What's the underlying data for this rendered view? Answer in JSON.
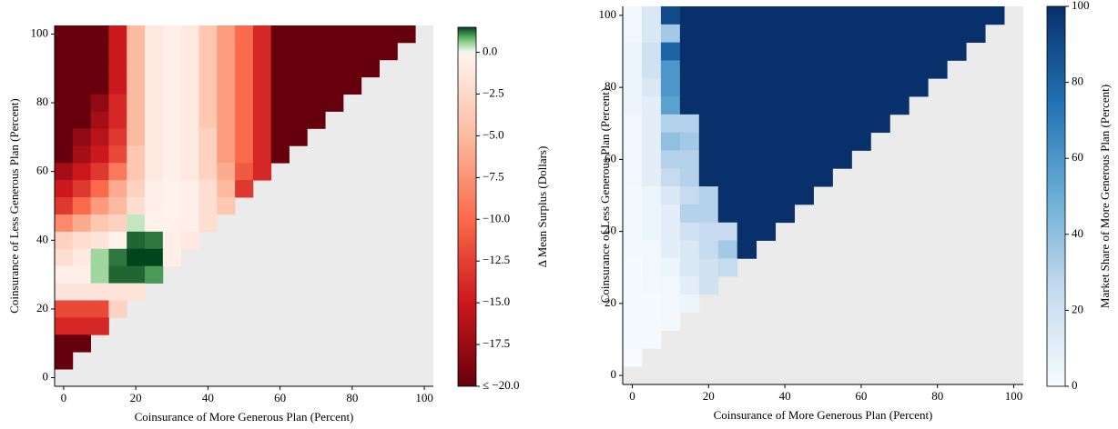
{
  "chart_data": [
    {
      "type": "heatmap",
      "colormap": "RdGn",
      "xlabel": "Coinsurance of More Generous Plan (Percent)",
      "ylabel": "Coinsurance of Less Generous Plan (Percent)",
      "x": [
        0,
        5,
        10,
        15,
        20,
        25,
        30,
        35,
        40,
        45,
        50,
        55,
        60,
        65,
        70,
        75,
        80,
        85,
        90,
        95
      ],
      "y": [
        100,
        95,
        90,
        85,
        80,
        75,
        70,
        65,
        60,
        55,
        50,
        45,
        40,
        35,
        30,
        25,
        20,
        15,
        10,
        5
      ],
      "z": [
        [
          -20,
          -20,
          -20,
          -15,
          -5,
          -1,
          -0.5,
          -1,
          -4,
          -7,
          -10,
          -14,
          -20,
          -20,
          -20,
          -20,
          -20,
          -20,
          -20,
          -20
        ],
        [
          -20,
          -20,
          -20,
          -15,
          -5,
          -1,
          -0.5,
          -1,
          -4,
          -7,
          -10,
          -14,
          -20,
          -20,
          -20,
          -20,
          -20,
          -20,
          -20,
          null
        ],
        [
          -20,
          -20,
          -20,
          -15,
          -5,
          -1,
          -0.5,
          -1,
          -4,
          -7,
          -10,
          -14,
          -20,
          -20,
          -20,
          -20,
          -20,
          -20,
          null,
          null
        ],
        [
          -20,
          -20,
          -20,
          -15,
          -5,
          -1,
          -0.5,
          -1,
          -4,
          -7,
          -10,
          -14,
          -20,
          -20,
          -20,
          -20,
          -20,
          null,
          null,
          null
        ],
        [
          -20,
          -20,
          -18,
          -14,
          -5,
          -1,
          -0.5,
          -1,
          -4,
          -7,
          -10,
          -14,
          -20,
          -20,
          -20,
          -20,
          null,
          null,
          null,
          null
        ],
        [
          -20,
          -20,
          -17,
          -14,
          -5,
          -1,
          -0.5,
          -1,
          -4,
          -7,
          -10,
          -14,
          -20,
          -20,
          -20,
          null,
          null,
          null,
          null,
          null
        ],
        [
          -20,
          -18,
          -16,
          -13,
          -5,
          -1,
          -0.5,
          -1,
          -3,
          -7,
          -10,
          -14,
          -20,
          -20,
          null,
          null,
          null,
          null,
          null,
          null
        ],
        [
          -20,
          -17,
          -15,
          -12,
          -4,
          -1,
          -0.5,
          -1,
          -3,
          -7,
          -10,
          -14,
          -20,
          null,
          null,
          null,
          null,
          null,
          null,
          null
        ],
        [
          -17,
          -15,
          -13,
          -9,
          -4,
          -1,
          -0.5,
          -1,
          -3,
          -6,
          -11,
          -14,
          null,
          null,
          null,
          null,
          null,
          null,
          null,
          null
        ],
        [
          -15,
          -13,
          -10,
          -6,
          -3,
          -0.5,
          -0.3,
          -0.5,
          -2,
          -5,
          -13,
          null,
          null,
          null,
          null,
          null,
          null,
          null,
          null,
          null
        ],
        [
          -13,
          -10,
          -7,
          -5,
          -2,
          -0.5,
          -0.3,
          -0.5,
          -2,
          -4,
          null,
          null,
          null,
          null,
          null,
          null,
          null,
          null,
          null,
          null
        ],
        [
          -8,
          -6,
          -4,
          -3,
          0.3,
          -0.3,
          -0.3,
          -0.5,
          -2,
          null,
          null,
          null,
          null,
          null,
          null,
          null,
          null,
          null,
          null,
          null
        ],
        [
          -3,
          -2,
          -1.5,
          -0.3,
          1.3,
          1.2,
          -0.5,
          -1,
          null,
          null,
          null,
          null,
          null,
          null,
          null,
          null,
          null,
          null,
          null,
          null
        ],
        [
          -2,
          -1,
          0.5,
          1.2,
          2,
          1.6,
          -0.5,
          null,
          null,
          null,
          null,
          null,
          null,
          null,
          null,
          null,
          null,
          null,
          null,
          null
        ],
        [
          -0.5,
          -0.5,
          0.5,
          1.3,
          1.3,
          1,
          null,
          null,
          null,
          null,
          null,
          null,
          null,
          null,
          null,
          null,
          null,
          null,
          null,
          null
        ],
        [
          -1.5,
          -1.5,
          -1.5,
          -1.5,
          -1.5,
          null,
          null,
          null,
          null,
          null,
          null,
          null,
          null,
          null,
          null,
          null,
          null,
          null,
          null,
          null
        ],
        [
          -12,
          -12,
          -12,
          -3,
          null,
          null,
          null,
          null,
          null,
          null,
          null,
          null,
          null,
          null,
          null,
          null,
          null,
          null,
          null,
          null
        ],
        [
          -14,
          -14,
          -14,
          null,
          null,
          null,
          null,
          null,
          null,
          null,
          null,
          null,
          null,
          null,
          null,
          null,
          null,
          null,
          null,
          null
        ],
        [
          -20,
          -20,
          null,
          null,
          null,
          null,
          null,
          null,
          null,
          null,
          null,
          null,
          null,
          null,
          null,
          null,
          null,
          null,
          null,
          null
        ],
        [
          -20,
          null,
          null,
          null,
          null,
          null,
          null,
          null,
          null,
          null,
          null,
          null,
          null,
          null,
          null,
          null,
          null,
          null,
          null,
          null
        ]
      ],
      "xlim": [
        -2.5,
        102.5
      ],
      "ylim": [
        -2.5,
        102.5
      ],
      "xticks": [
        0,
        20,
        40,
        60,
        80,
        100
      ],
      "yticks": [
        0,
        20,
        40,
        60,
        80,
        100
      ],
      "colorbar": {
        "label": "Δ Mean Surplus (Dollars)",
        "lim": [
          -20,
          1.5
        ],
        "ticks": [
          {
            "value": 0,
            "label": "0.0"
          },
          {
            "value": -2.5,
            "label": "−2.5"
          },
          {
            "value": -5,
            "label": "−5.0"
          },
          {
            "value": -7.5,
            "label": "−7.5"
          },
          {
            "value": -10,
            "label": "−10.0"
          },
          {
            "value": -12.5,
            "label": "−12.5"
          },
          {
            "value": -15,
            "label": "−15.0"
          },
          {
            "value": -17.5,
            "label": "−17.5"
          },
          {
            "value": -20,
            "label": "≤ −20.0"
          }
        ]
      }
    },
    {
      "type": "heatmap",
      "colormap": "Blues",
      "xlabel": "Coinsurance of More Generous Plan (Percent)",
      "ylabel": "Coinsurance of Less Generous Plan (Percent)",
      "x": [
        0,
        5,
        10,
        15,
        20,
        25,
        30,
        35,
        40,
        45,
        50,
        55,
        60,
        65,
        70,
        75,
        80,
        85,
        90,
        95
      ],
      "y": [
        100,
        95,
        90,
        85,
        80,
        75,
        70,
        65,
        60,
        55,
        50,
        45,
        40,
        35,
        30,
        25,
        20,
        15,
        10,
        5
      ],
      "z": [
        [
          3,
          15,
          90,
          100,
          100,
          100,
          100,
          100,
          100,
          100,
          100,
          100,
          100,
          100,
          100,
          100,
          100,
          100,
          100,
          100
        ],
        [
          3,
          15,
          35,
          100,
          100,
          100,
          100,
          100,
          100,
          100,
          100,
          100,
          100,
          100,
          100,
          100,
          100,
          100,
          100,
          null
        ],
        [
          5,
          20,
          80,
          100,
          100,
          100,
          100,
          100,
          100,
          100,
          100,
          100,
          100,
          100,
          100,
          100,
          100,
          100,
          null,
          null
        ],
        [
          5,
          20,
          60,
          100,
          100,
          100,
          100,
          100,
          100,
          100,
          100,
          100,
          100,
          100,
          100,
          100,
          100,
          null,
          null,
          null
        ],
        [
          5,
          15,
          60,
          100,
          100,
          100,
          100,
          100,
          100,
          100,
          100,
          100,
          100,
          100,
          100,
          100,
          null,
          null,
          null,
          null
        ],
        [
          5,
          10,
          55,
          100,
          100,
          100,
          100,
          100,
          100,
          100,
          100,
          100,
          100,
          100,
          100,
          null,
          null,
          null,
          null,
          null
        ],
        [
          3,
          10,
          30,
          30,
          100,
          100,
          100,
          100,
          100,
          100,
          100,
          100,
          100,
          100,
          null,
          null,
          null,
          null,
          null,
          null
        ],
        [
          3,
          10,
          40,
          35,
          100,
          100,
          100,
          100,
          100,
          100,
          100,
          100,
          100,
          null,
          null,
          null,
          null,
          null,
          null,
          null
        ],
        [
          3,
          10,
          30,
          30,
          100,
          100,
          100,
          100,
          100,
          100,
          100,
          100,
          null,
          null,
          null,
          null,
          null,
          null,
          null,
          null
        ],
        [
          3,
          10,
          25,
          30,
          100,
          100,
          100,
          100,
          100,
          100,
          100,
          null,
          null,
          null,
          null,
          null,
          null,
          null,
          null,
          null
        ],
        [
          2,
          5,
          15,
          25,
          30,
          100,
          100,
          100,
          100,
          100,
          null,
          null,
          null,
          null,
          null,
          null,
          null,
          null,
          null,
          null
        ],
        [
          2,
          5,
          10,
          30,
          30,
          100,
          100,
          100,
          100,
          null,
          null,
          null,
          null,
          null,
          null,
          null,
          null,
          null,
          null,
          null
        ],
        [
          2,
          5,
          10,
          20,
          25,
          25,
          100,
          100,
          null,
          null,
          null,
          null,
          null,
          null,
          null,
          null,
          null,
          null,
          null,
          null
        ],
        [
          2,
          3,
          10,
          15,
          25,
          35,
          100,
          null,
          null,
          null,
          null,
          null,
          null,
          null,
          null,
          null,
          null,
          null,
          null,
          null
        ],
        [
          1,
          3,
          5,
          15,
          20,
          25,
          null,
          null,
          null,
          null,
          null,
          null,
          null,
          null,
          null,
          null,
          null,
          null,
          null,
          null
        ],
        [
          1,
          2,
          3,
          10,
          20,
          null,
          null,
          null,
          null,
          null,
          null,
          null,
          null,
          null,
          null,
          null,
          null,
          null,
          null,
          null
        ],
        [
          1,
          1,
          3,
          5,
          null,
          null,
          null,
          null,
          null,
          null,
          null,
          null,
          null,
          null,
          null,
          null,
          null,
          null,
          null,
          null
        ],
        [
          1,
          1,
          2,
          null,
          null,
          null,
          null,
          null,
          null,
          null,
          null,
          null,
          null,
          null,
          null,
          null,
          null,
          null,
          null,
          null
        ],
        [
          1,
          1,
          null,
          null,
          null,
          null,
          null,
          null,
          null,
          null,
          null,
          null,
          null,
          null,
          null,
          null,
          null,
          null,
          null,
          null
        ],
        [
          0,
          null,
          null,
          null,
          null,
          null,
          null,
          null,
          null,
          null,
          null,
          null,
          null,
          null,
          null,
          null,
          null,
          null,
          null,
          null
        ]
      ],
      "xlim": [
        -2.5,
        102.5
      ],
      "ylim": [
        -2.5,
        102.5
      ],
      "xticks": [
        0,
        20,
        40,
        60,
        80,
        100
      ],
      "yticks": [
        0,
        20,
        40,
        60,
        80,
        100
      ],
      "colorbar": {
        "label": "Market Share of More Generous Plan (Percent)",
        "lim": [
          0,
          100
        ],
        "ticks": [
          0,
          20,
          40,
          60,
          80,
          100
        ]
      }
    }
  ]
}
